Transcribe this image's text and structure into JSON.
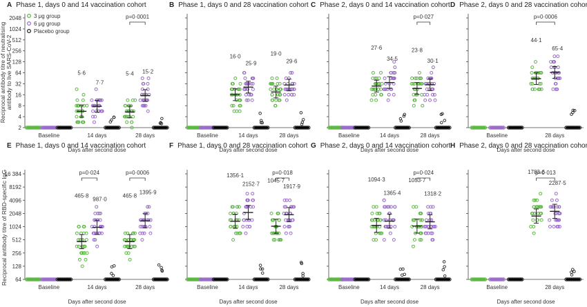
{
  "colors": {
    "g3": "#5cb842",
    "g6": "#9b6cc9",
    "placebo": "#222222"
  },
  "legend": [
    {
      "key": "g3",
      "label": "3 μg group"
    },
    {
      "key": "g6",
      "label": "6 μg group"
    },
    {
      "key": "placebo",
      "label": "Placebo group"
    }
  ],
  "ylabels": {
    "top": [
      "Reciprocal antibody titre of neutralising",
      "antibody to live SARS-CoV-2"
    ],
    "bottom": [
      "Reciprocal antibody titre of RBD-specific IgG"
    ]
  },
  "xaxis_label": "Days after second dose",
  "chart_data": [
    {
      "letter": "A",
      "title": "Phase 1, days 0 and 14 vaccination cohort",
      "type": "scatter",
      "yscale": "log2",
      "yticks": [
        "2",
        "4",
        "8",
        "16",
        "32",
        "64",
        "128",
        "256",
        "512",
        "1024",
        "2048"
      ],
      "groups": [
        "Baseline",
        "14 days",
        "28 days"
      ],
      "gmt": [
        [
          null,
          null
        ],
        [
          "5·6",
          "7·7"
        ],
        [
          "5·4",
          "15·2"
        ]
      ],
      "gmt_values": [
        [
          2,
          2,
          2
        ],
        [
          5.6,
          7.7,
          2
        ],
        [
          5.4,
          15.2,
          2
        ]
      ],
      "p": [
        null,
        null,
        "p=0·0001"
      ]
    },
    {
      "letter": "B",
      "title": "Phase 1, days 0 and 28 vaccination cohort",
      "type": "scatter",
      "yscale": "log2",
      "yticks": [],
      "groups": [
        "Baseline",
        "14 days",
        "28 days"
      ],
      "gmt": [
        [
          null,
          null
        ],
        [
          "16·0",
          "25·9"
        ],
        [
          "19·0",
          "29·6"
        ]
      ],
      "gmt_values": [
        [
          2,
          2,
          2
        ],
        [
          16.0,
          25.9,
          2
        ],
        [
          19.0,
          29.6,
          2
        ]
      ],
      "p": [
        null,
        null,
        null
      ]
    },
    {
      "letter": "C",
      "title": "Phase 2, days 0 and 14 vaccination cohort",
      "type": "scatter",
      "yscale": "log2",
      "yticks": [],
      "groups": [
        "Baseline",
        "14 days",
        "28 days"
      ],
      "gmt": [
        [
          null,
          null
        ],
        [
          "27·6",
          "34·5"
        ],
        [
          "23·8",
          "30·1"
        ]
      ],
      "gmt_values": [
        [
          2,
          2,
          2
        ],
        [
          27.6,
          34.5,
          2
        ],
        [
          23.8,
          30.1,
          2
        ]
      ],
      "p": [
        null,
        null,
        "p=0·027"
      ]
    },
    {
      "letter": "D",
      "title": "Phase 2, days 0 and 28 vaccination cohort",
      "type": "scatter",
      "yscale": "log2",
      "yticks": [],
      "groups": [
        "Baseline",
        "28 days"
      ],
      "gmt": [
        [
          null,
          null
        ],
        [
          "44·1",
          "65·4"
        ]
      ],
      "gmt_values": [
        [
          2,
          2,
          2
        ],
        [
          44.1,
          65.4,
          2
        ]
      ],
      "p": [
        null,
        "p=0·0006"
      ]
    },
    {
      "letter": "E",
      "title": "Phase 1, days 0 and 14 vaccination cohort",
      "type": "scatter",
      "yscale": "log2",
      "yticks": [
        "64",
        "128",
        "256",
        "512",
        "1024",
        "2048",
        "4096",
        "8192",
        "16 384"
      ],
      "groups": [
        "Baseline",
        "14 days",
        "28 days"
      ],
      "gmt": [
        [
          null,
          null
        ],
        [
          "465·8",
          "987·0"
        ],
        [
          "465·8",
          "1395·9"
        ]
      ],
      "gmt_values": [
        [
          64,
          64,
          64
        ],
        [
          465.8,
          987.0,
          64
        ],
        [
          465.8,
          1395.9,
          64
        ]
      ],
      "p": [
        null,
        "p=0·024",
        "p=0·0006"
      ]
    },
    {
      "letter": "F",
      "title": "Phase 1, days 0 and 28 vaccination cohort",
      "type": "scatter",
      "yscale": "log2",
      "yticks": [],
      "groups": [
        "Baseline",
        "14 days",
        "28 days"
      ],
      "gmt": [
        [
          null,
          null
        ],
        [
          "1356·1",
          "2152·7"
        ],
        [
          "1045·7",
          "1917·9"
        ]
      ],
      "gmt_values": [
        [
          64,
          64,
          64
        ],
        [
          1356.1,
          2152.7,
          64
        ],
        [
          1045.7,
          1917.9,
          64
        ]
      ],
      "p": [
        null,
        null,
        "p=0·018"
      ]
    },
    {
      "letter": "G",
      "title": "Phase 2, days 0 and 14 vaccination cohort",
      "type": "scatter",
      "yscale": "log2",
      "yticks": [],
      "groups": [
        "Baseline",
        "14 days",
        "28 days"
      ],
      "gmt": [
        [
          null,
          null
        ],
        [
          "1094·3",
          "1365·4"
        ],
        [
          "1053·7",
          "1318·2"
        ]
      ],
      "gmt_values": [
        [
          64,
          64,
          64
        ],
        [
          1094.3,
          1365.4,
          64
        ],
        [
          1053.7,
          1318.2,
          64
        ]
      ],
      "p": [
        null,
        null,
        "p=0·024"
      ]
    },
    {
      "letter": "H",
      "title": "Phase 2, days 0 and 28 vaccination cohort",
      "type": "scatter",
      "yscale": "log2",
      "yticks": [],
      "groups": [
        "Baseline",
        "28 days"
      ],
      "gmt": [
        [
          null,
          null
        ],
        [
          "1783·6",
          "2287·5"
        ]
      ],
      "gmt_values": [
        [
          64,
          64,
          64
        ],
        [
          1783.6,
          2287.5,
          64
        ]
      ],
      "p": [
        null,
        "p=0·013"
      ]
    }
  ]
}
